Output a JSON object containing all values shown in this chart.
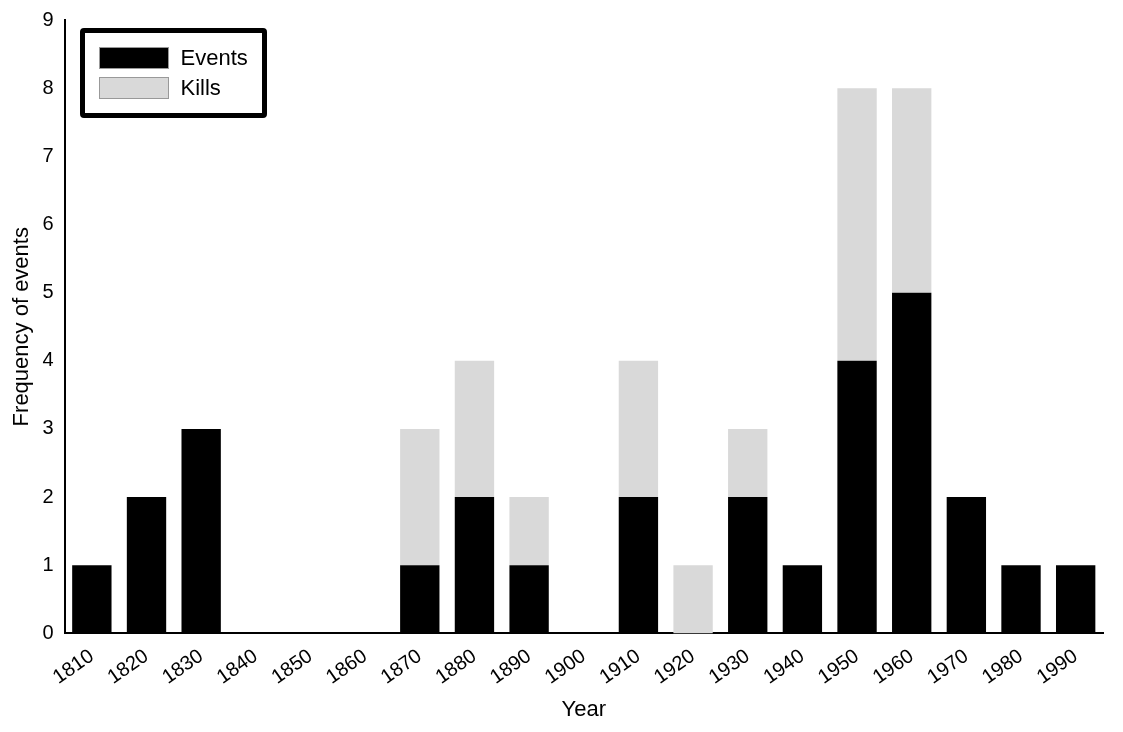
{
  "chart_data": {
    "type": "bar",
    "stacked": true,
    "xlabel": "Year",
    "ylabel": "Frequency of events",
    "categories": [
      "1810",
      "1820",
      "1830",
      "1840",
      "1850",
      "1860",
      "1870",
      "1880",
      "1890",
      "1900",
      "1910",
      "1920",
      "1930",
      "1940",
      "1950",
      "1960",
      "1970",
      "1980",
      "1990"
    ],
    "series": [
      {
        "name": "Events",
        "color": "#000000",
        "values": [
          1,
          2,
          3,
          0,
          0,
          0,
          1,
          2,
          1,
          0,
          2,
          0,
          2,
          1,
          4,
          5,
          2,
          1,
          1
        ]
      },
      {
        "name": "Kills",
        "color": "#d9d9d9",
        "values": [
          0,
          0,
          0,
          0,
          0,
          0,
          2,
          2,
          1,
          0,
          2,
          1,
          1,
          0,
          4,
          3,
          0,
          0,
          0
        ]
      }
    ],
    "ylim": [
      0,
      9
    ],
    "yticks": [
      0,
      1,
      2,
      3,
      4,
      5,
      6,
      7,
      8,
      9
    ],
    "grid": false,
    "legend": "top left"
  }
}
